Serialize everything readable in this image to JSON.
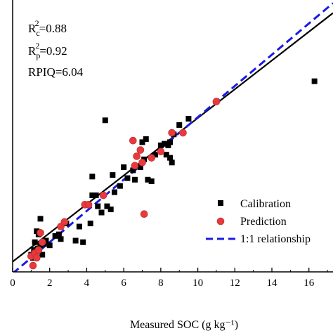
{
  "chart_data": {
    "type": "scatter",
    "xlabel": "Measured SOC (g kg⁻¹)",
    "xlim": [
      0,
      17.3
    ],
    "ylim": [
      0.1,
      17.5
    ],
    "x_ticks": [
      "0",
      "2",
      "4",
      "6",
      "8",
      "10",
      "12",
      "14",
      "16"
    ],
    "stats": {
      "rc2_base": "R",
      "rc2_sub": "c",
      "rc2_sup": "2",
      "rc2_value": "=0.88",
      "rp2_base": "R",
      "rp2_sub": "p",
      "rp2_sup": "2",
      "rp2_value": "=0.92",
      "rpiq": "RPIQ=6.04"
    },
    "series": [
      {
        "name": "Calibration",
        "marker": "square",
        "color": "#000000",
        "points": [
          [
            1.0,
            1.2
          ],
          [
            1.1,
            1.0
          ],
          [
            1.15,
            1.5
          ],
          [
            1.2,
            2.0
          ],
          [
            1.25,
            1.3
          ],
          [
            1.3,
            2.7
          ],
          [
            1.35,
            1.6
          ],
          [
            1.4,
            2.5
          ],
          [
            1.5,
            3.5
          ],
          [
            1.5,
            1.8
          ],
          [
            1.6,
            1.2
          ],
          [
            1.7,
            1.9
          ],
          [
            1.8,
            2.1
          ],
          [
            2.0,
            1.8
          ],
          [
            2.3,
            2.4
          ],
          [
            2.5,
            2.5
          ],
          [
            2.6,
            2.2
          ],
          [
            2.9,
            3.2
          ],
          [
            3.4,
            2.1
          ],
          [
            3.6,
            3.0
          ],
          [
            3.8,
            2.0
          ],
          [
            3.9,
            4.4
          ],
          [
            4.2,
            3.2
          ],
          [
            4.3,
            6.2
          ],
          [
            4.3,
            5.0
          ],
          [
            4.5,
            5.0
          ],
          [
            4.6,
            4.3
          ],
          [
            4.8,
            3.9
          ],
          [
            5.0,
            9.8
          ],
          [
            5.1,
            4.3
          ],
          [
            5.3,
            4.1
          ],
          [
            5.4,
            6.3
          ],
          [
            5.5,
            5.2
          ],
          [
            5.8,
            5.6
          ],
          [
            6.0,
            6.8
          ],
          [
            6.2,
            6.1
          ],
          [
            6.5,
            6.6
          ],
          [
            6.6,
            6.0
          ],
          [
            6.9,
            6.8
          ],
          [
            7.0,
            8.4
          ],
          [
            7.1,
            7.3
          ],
          [
            7.2,
            8.6
          ],
          [
            7.3,
            6.0
          ],
          [
            7.5,
            5.9
          ],
          [
            7.7,
            7.6
          ],
          [
            8.0,
            8.2
          ],
          [
            8.2,
            8.3
          ],
          [
            8.3,
            7.6
          ],
          [
            8.4,
            8.2
          ],
          [
            8.5,
            8.4
          ],
          [
            8.5,
            7.4
          ],
          [
            8.6,
            7.1
          ],
          [
            8.7,
            8.9
          ],
          [
            9.0,
            9.5
          ],
          [
            9.5,
            9.9
          ],
          [
            16.3,
            12.3
          ]
        ]
      },
      {
        "name": "Prediction",
        "marker": "circle",
        "color": "#e8393c",
        "points": [
          [
            1.0,
            1.1
          ],
          [
            1.1,
            0.5
          ],
          [
            1.2,
            1.3
          ],
          [
            1.3,
            1.0
          ],
          [
            1.4,
            1.5
          ],
          [
            1.5,
            2.6
          ],
          [
            1.6,
            2.0
          ],
          [
            2.6,
            3.0
          ],
          [
            2.8,
            3.3
          ],
          [
            3.9,
            4.4
          ],
          [
            4.1,
            4.4
          ],
          [
            4.9,
            5.0
          ],
          [
            6.5,
            8.5
          ],
          [
            6.6,
            6.9
          ],
          [
            6.7,
            7.5
          ],
          [
            6.9,
            7.9
          ],
          [
            7.0,
            7.1
          ],
          [
            7.1,
            3.8
          ],
          [
            7.5,
            7.4
          ],
          [
            8.0,
            7.8
          ],
          [
            8.6,
            9.0
          ],
          [
            9.2,
            9.0
          ],
          [
            11.0,
            11.0
          ]
        ]
      }
    ],
    "lines": [
      {
        "name": "fit",
        "style": "solid",
        "color": "#000000",
        "intercept": 0.75,
        "slope": 0.92
      },
      {
        "name": "1:1 relationship",
        "style": "dashed",
        "color": "#1a1ae6",
        "intercept": 0,
        "slope": 1
      }
    ],
    "legend": {
      "placement": "right",
      "entries": [
        "Calibration",
        "Prediction",
        "1:1 relationship"
      ]
    }
  }
}
